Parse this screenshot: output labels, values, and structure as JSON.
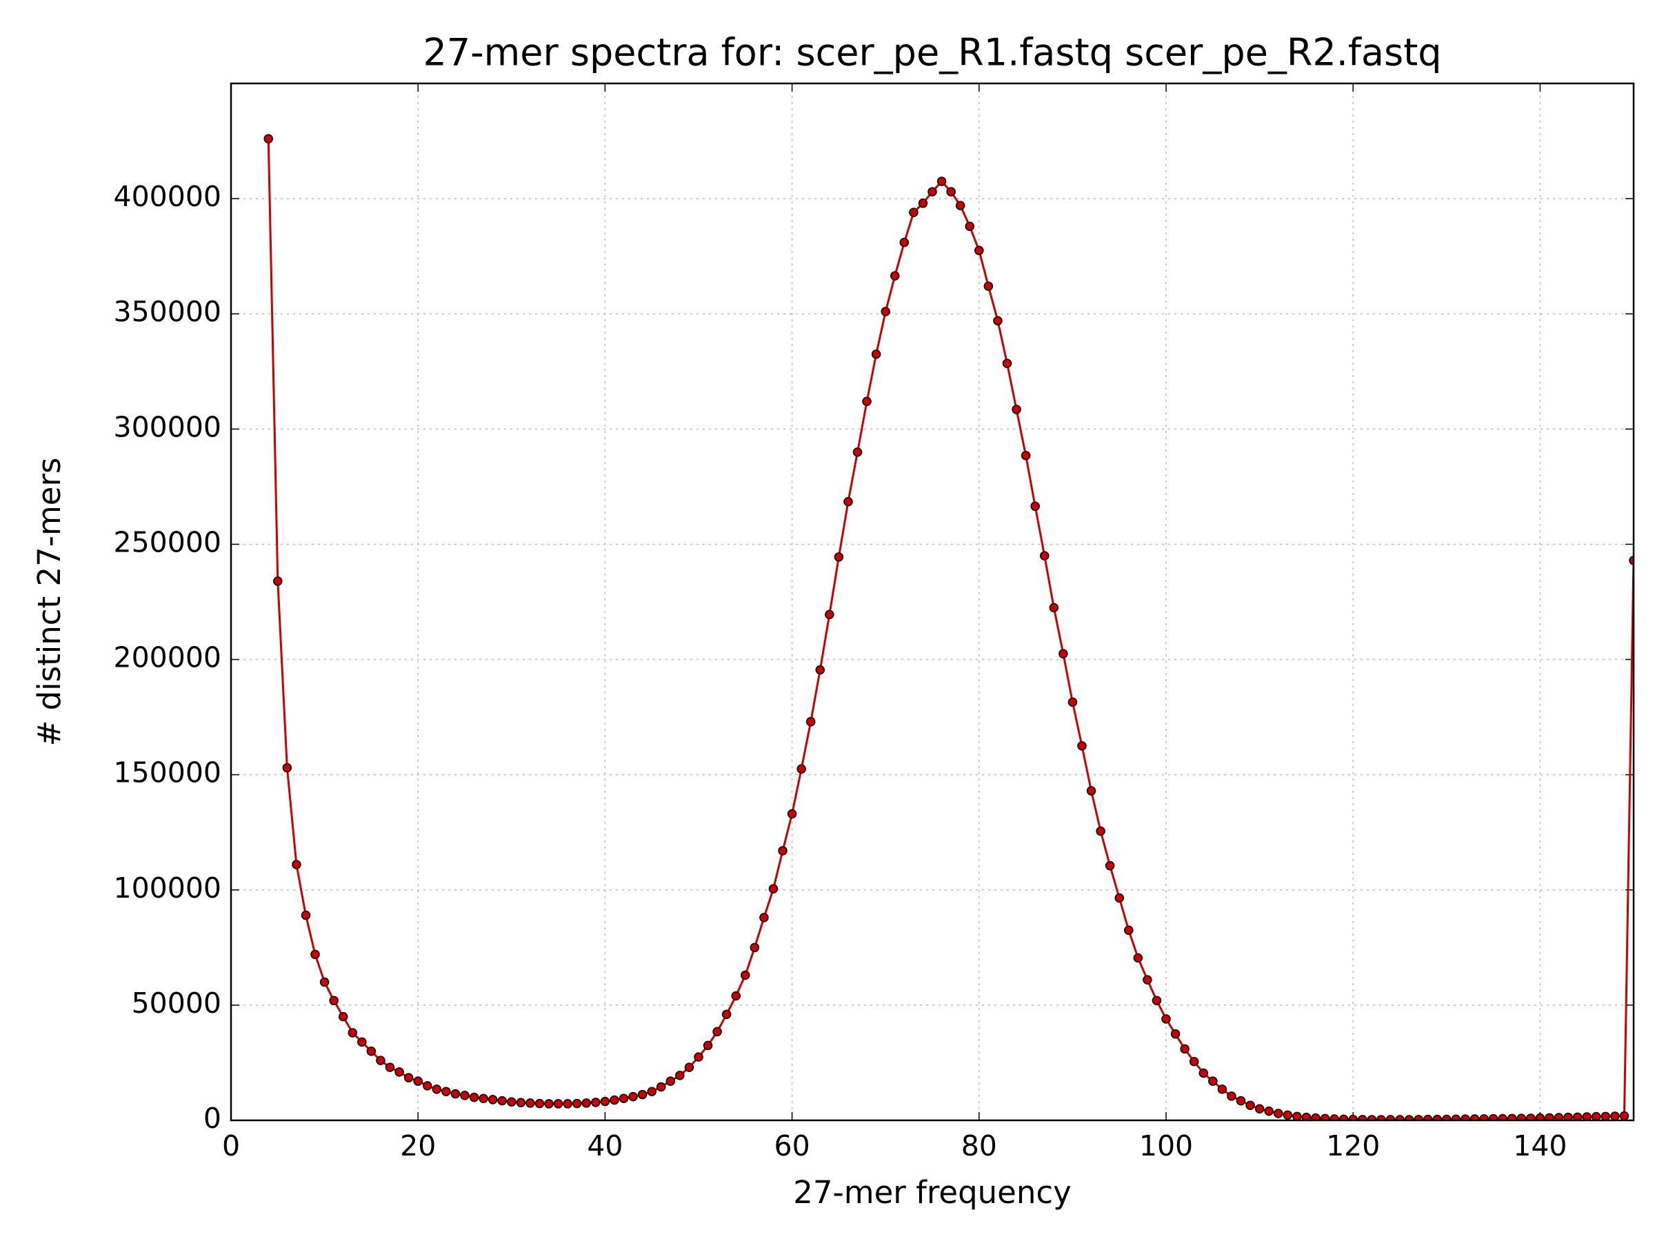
{
  "chart_data": {
    "type": "line",
    "title": "27-mer spectra for: scer_pe_R1.fastq scer_pe_R2.fastq",
    "x_label": "27-mer frequency",
    "y_label": "# distinct 27-mers",
    "xlim": [
      0,
      150
    ],
    "xticks": [
      0,
      20,
      40,
      60,
      80,
      100,
      120,
      140
    ],
    "ylim": [
      0,
      450000
    ],
    "yticks": [
      0,
      50000,
      100000,
      150000,
      200000,
      250000,
      300000,
      350000,
      400000
    ],
    "grid": true,
    "series": [
      {
        "color": "#cc0000",
        "x": [
          4,
          5,
          6,
          7,
          8,
          9,
          10,
          11,
          12,
          13,
          14,
          15,
          16,
          17,
          18,
          19,
          20,
          21,
          22,
          23,
          24,
          25,
          26,
          27,
          28,
          29,
          30,
          31,
          32,
          33,
          34,
          35,
          36,
          37,
          38,
          39,
          40,
          41,
          42,
          43,
          44,
          45,
          46,
          47,
          48,
          49,
          50,
          51,
          52,
          53,
          54,
          55,
          56,
          57,
          58,
          59,
          60,
          61,
          62,
          63,
          64,
          65,
          66,
          67,
          68,
          69,
          70,
          71,
          72,
          73,
          74,
          75,
          76,
          77,
          78,
          79,
          80,
          81,
          82,
          83,
          84,
          85,
          86,
          87,
          88,
          89,
          90,
          91,
          92,
          93,
          94,
          95,
          96,
          97,
          98,
          99,
          100,
          101,
          102,
          103,
          104,
          105,
          106,
          107,
          108,
          109,
          110,
          111,
          112,
          113,
          114,
          115,
          116,
          117,
          118,
          119,
          120,
          121,
          122,
          123,
          124,
          125,
          126,
          127,
          128,
          129,
          130,
          131,
          132,
          133,
          134,
          135,
          136,
          137,
          138,
          139,
          140,
          141,
          142,
          143,
          144,
          145,
          146,
          147,
          148,
          149,
          150
        ],
        "values": [
          426000,
          234000,
          153000,
          111000,
          89000,
          72000,
          60000,
          52000,
          45000,
          38000,
          34000,
          30000,
          26000,
          23000,
          21000,
          18500,
          17000,
          15000,
          13500,
          12500,
          11500,
          10800,
          10000,
          9500,
          9000,
          8500,
          8000,
          7700,
          7500,
          7300,
          7200,
          7200,
          7200,
          7300,
          7500,
          7800,
          8200,
          8800,
          9500,
          10300,
          11200,
          12500,
          14500,
          17000,
          19500,
          23000,
          27500,
          32500,
          38500,
          46000,
          54000,
          63000,
          75000,
          88000,
          100500,
          117000,
          133000,
          152500,
          173000,
          195500,
          219500,
          244500,
          268500,
          290000,
          312000,
          332500,
          351000,
          366500,
          381000,
          394000,
          398000,
          403000,
          407500,
          403000,
          397000,
          388000,
          377500,
          362000,
          347000,
          328500,
          308500,
          288500,
          266500,
          245000,
          222500,
          202500,
          181500,
          162500,
          143000,
          125500,
          110500,
          96500,
          82500,
          70500,
          61000,
          52000,
          44000,
          37500,
          31000,
          25500,
          20500,
          17000,
          13500,
          10500,
          8500,
          6500,
          5000,
          4000,
          3000,
          2300,
          1700,
          1300,
          1000,
          800,
          600,
          500,
          400,
          350,
          300,
          300,
          300,
          300,
          300,
          350,
          400,
          400,
          450,
          500,
          550,
          600,
          650,
          700,
          750,
          800,
          850,
          900,
          1000,
          1100,
          1200,
          1300,
          1400,
          1500,
          1600,
          1700,
          1800,
          1900,
          243000
        ]
      }
    ]
  }
}
